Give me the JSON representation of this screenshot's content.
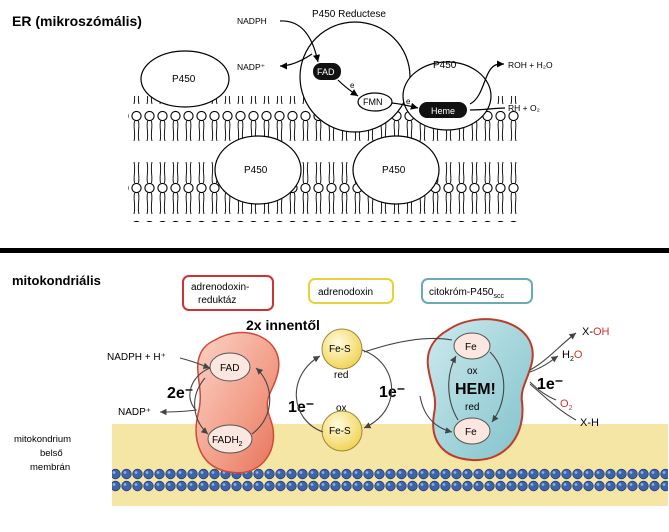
{
  "er": {
    "title": "ER (mikroszómális)",
    "nadph": "NADPH",
    "nadp_plus": "NADP⁺",
    "reductase": "P450  Reductese",
    "fad": "FAD",
    "fmn": "FMN",
    "heme": "Heme",
    "electron": "e",
    "p450": "P450",
    "roh_h2o": "ROH  +  H₂O",
    "rh_o2": "RH  +  O₂"
  },
  "mito": {
    "title": "mitokondriális",
    "adrenodoxin_reductase": [
      "adrenodoxin-",
      "reduktáz"
    ],
    "adrenodoxin": "adrenodoxin",
    "cyp_scc": "citokróm-P450",
    "cyp_scc_sub": "scc",
    "note_2x": "2x innentől",
    "nadph_h": "NADPH + H⁺",
    "nadp_plus": "NADP⁺",
    "fad": "FAD",
    "fadh2": "FADH",
    "fadh2_sub": "2",
    "two_e": "2e⁻",
    "one_e": "1e⁻",
    "fes": "Fe-S",
    "red": "red",
    "ox": "ox",
    "fe": "Fe",
    "hem": "HEM!",
    "x_oh": "X-OH",
    "h2o": "H₂O",
    "o2": "O₂",
    "x_h": "X-H",
    "membrane": [
      "mitokondrium",
      "belső",
      "membrán"
    ]
  },
  "colors": {
    "reductase_fill": "#f4b4a4",
    "adrenodoxin_fill": "#fbf0a0",
    "cyp_fill": "#a9d6dc",
    "arrow_red": "#cc3333",
    "membrane_head": "#3d63a8",
    "membrane_core": "#f6e6a6"
  }
}
